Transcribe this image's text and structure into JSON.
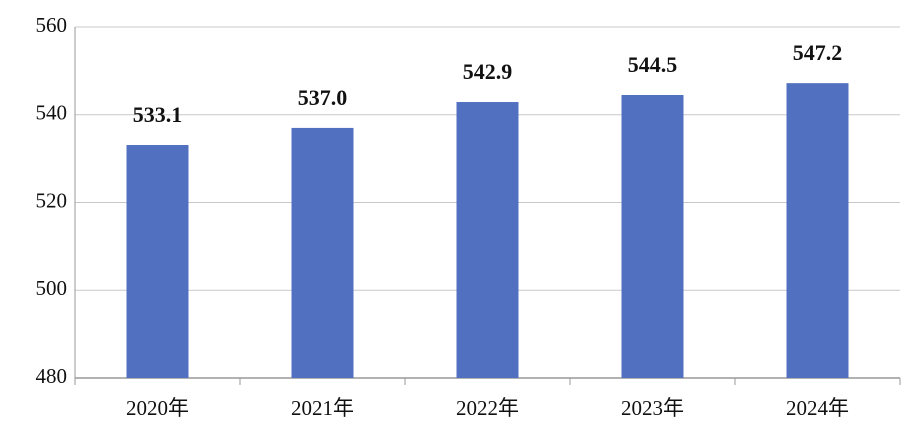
{
  "chart_data": {
    "type": "bar",
    "categories": [
      "2020年",
      "2021年",
      "2022年",
      "2023年",
      "2024年"
    ],
    "values": [
      533.1,
      537.0,
      542.9,
      544.5,
      547.2
    ],
    "value_labels": [
      "533.1",
      "537.0",
      "542.9",
      "544.5",
      "547.2"
    ],
    "color": "#5170c0",
    "ylim": [
      480,
      560
    ],
    "yticks": [
      480,
      500,
      520,
      540,
      560
    ],
    "grid": true
  }
}
